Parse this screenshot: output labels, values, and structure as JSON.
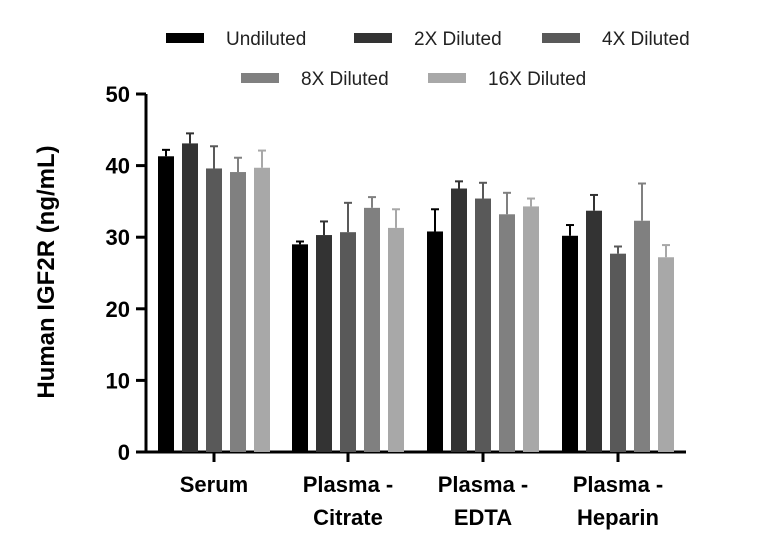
{
  "chart_data": {
    "type": "bar",
    "title": "",
    "xlabel": "",
    "ylabel": "Human IGF2R (ng/mL)",
    "ylim": [
      0,
      50
    ],
    "yticks": [
      0,
      10,
      20,
      30,
      40,
      50
    ],
    "categories": [
      [
        "Serum"
      ],
      [
        "Plasma -",
        "Citrate"
      ],
      [
        "Plasma -",
        "EDTA"
      ],
      [
        "Plasma -",
        "Heparin"
      ]
    ],
    "series": [
      {
        "name": "Undiluted",
        "color": "#000000",
        "values": [
          41.3,
          29.0,
          30.8,
          30.2
        ],
        "errors": [
          0.9,
          0.4,
          3.1,
          1.5
        ]
      },
      {
        "name": "2X Diluted",
        "color": "#333333",
        "values": [
          43.1,
          30.3,
          36.8,
          33.7
        ],
        "errors": [
          1.4,
          1.9,
          1.0,
          2.2
        ]
      },
      {
        "name": "4X Diluted",
        "color": "#595959",
        "values": [
          39.6,
          30.7,
          35.4,
          27.7
        ],
        "errors": [
          3.1,
          4.1,
          2.2,
          1.0
        ]
      },
      {
        "name": "8X Diluted",
        "color": "#808080",
        "values": [
          39.1,
          34.1,
          33.2,
          32.3
        ],
        "errors": [
          2.0,
          1.5,
          3.0,
          5.2
        ]
      },
      {
        "name": "16X Diluted",
        "color": "#a8a8a8",
        "values": [
          39.7,
          31.3,
          34.3,
          27.2
        ],
        "errors": [
          2.4,
          2.6,
          1.1,
          1.7
        ]
      }
    ],
    "legend": "top",
    "grid": false
  }
}
